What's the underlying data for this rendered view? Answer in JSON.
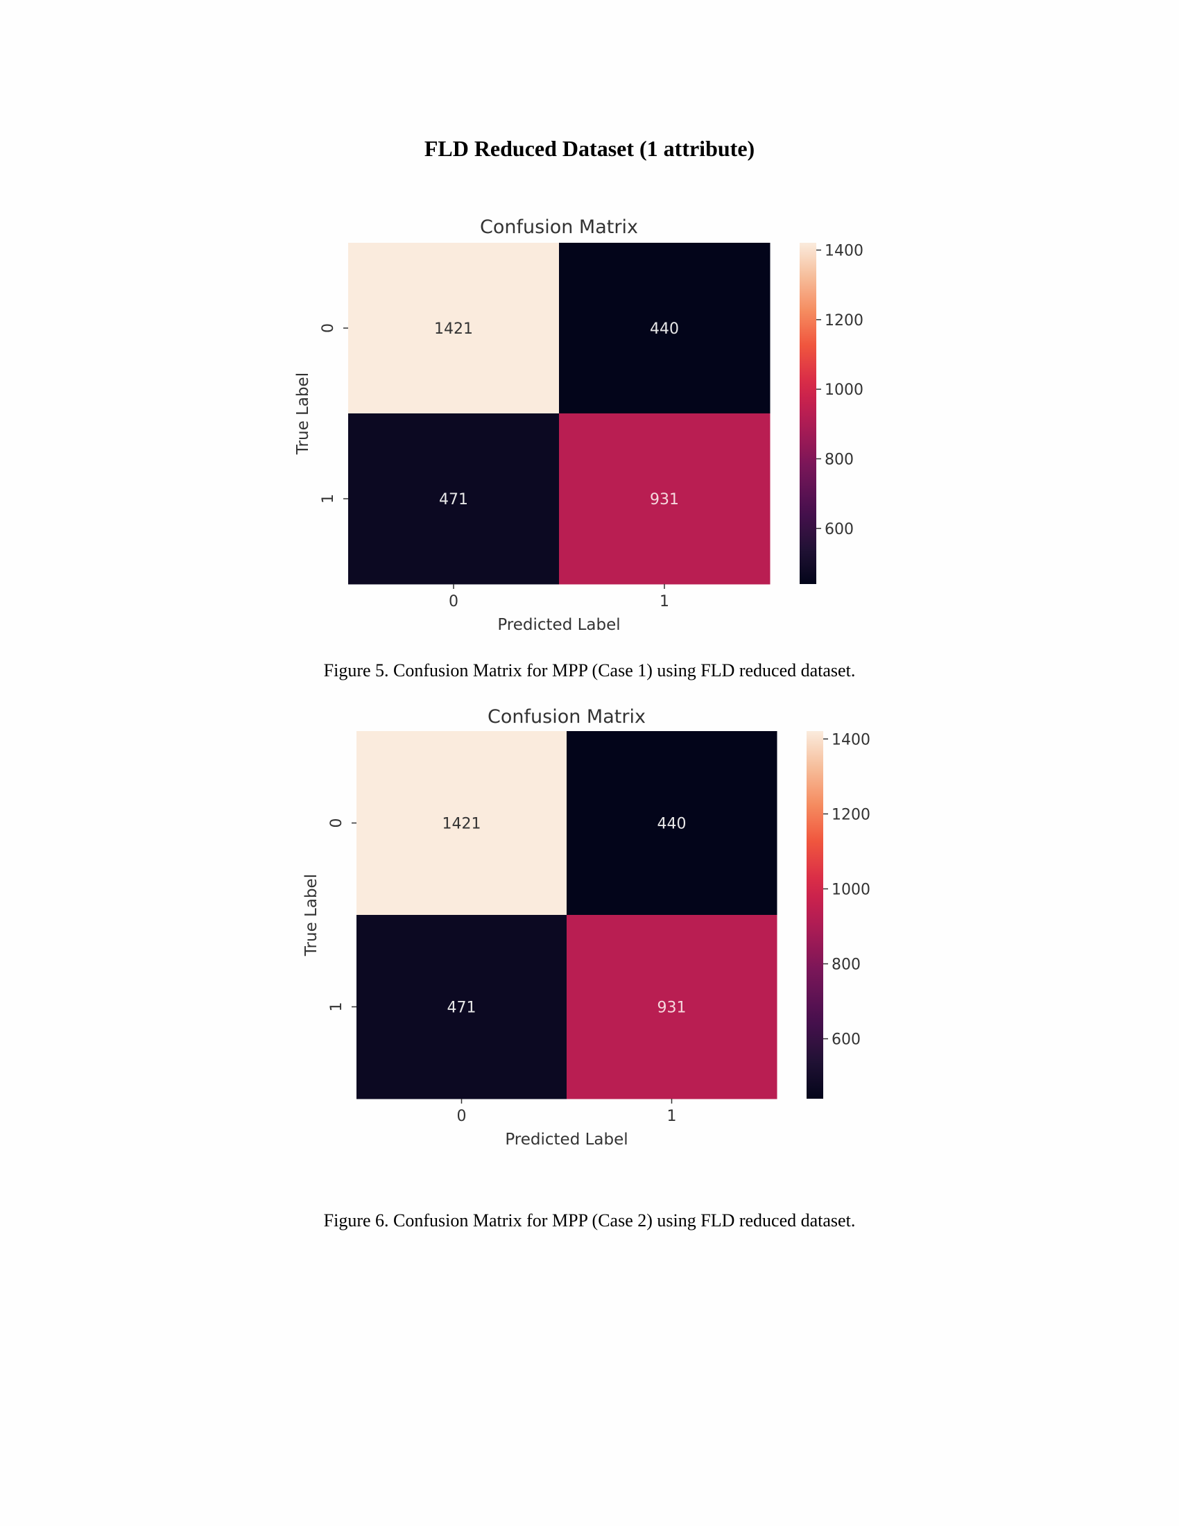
{
  "page": {
    "section_title": "FLD Reduced Dataset (1 attribute)"
  },
  "figures": [
    {
      "caption": "Figure 5. Confusion Matrix for MPP (Case 1) using FLD reduced dataset."
    },
    {
      "caption": "Figure 6. Confusion Matrix for MPP (Case 2) using FLD reduced dataset."
    }
  ],
  "chart_data": [
    {
      "type": "heatmap",
      "title": "Confusion Matrix",
      "xlabel": "Predicted Label",
      "ylabel": "True Label",
      "x_categories": [
        "0",
        "1"
      ],
      "y_categories": [
        "0",
        "1"
      ],
      "values": [
        [
          1421,
          440
        ],
        [
          471,
          931
        ]
      ],
      "colorbar": {
        "min": 440,
        "max": 1421,
        "ticks": [
          1400,
          1200,
          1000,
          800,
          600
        ],
        "colormap": "rocket"
      },
      "grid": false
    },
    {
      "type": "heatmap",
      "title": "Confusion Matrix",
      "xlabel": "Predicted Label",
      "ylabel": "True Label",
      "x_categories": [
        "0",
        "1"
      ],
      "y_categories": [
        "0",
        "1"
      ],
      "values": [
        [
          1421,
          440
        ],
        [
          471,
          931
        ]
      ],
      "colorbar": {
        "min": 440,
        "max": 1421,
        "ticks": [
          1400,
          1200,
          1000,
          800,
          600
        ],
        "colormap": "rocket"
      },
      "grid": false
    }
  ]
}
